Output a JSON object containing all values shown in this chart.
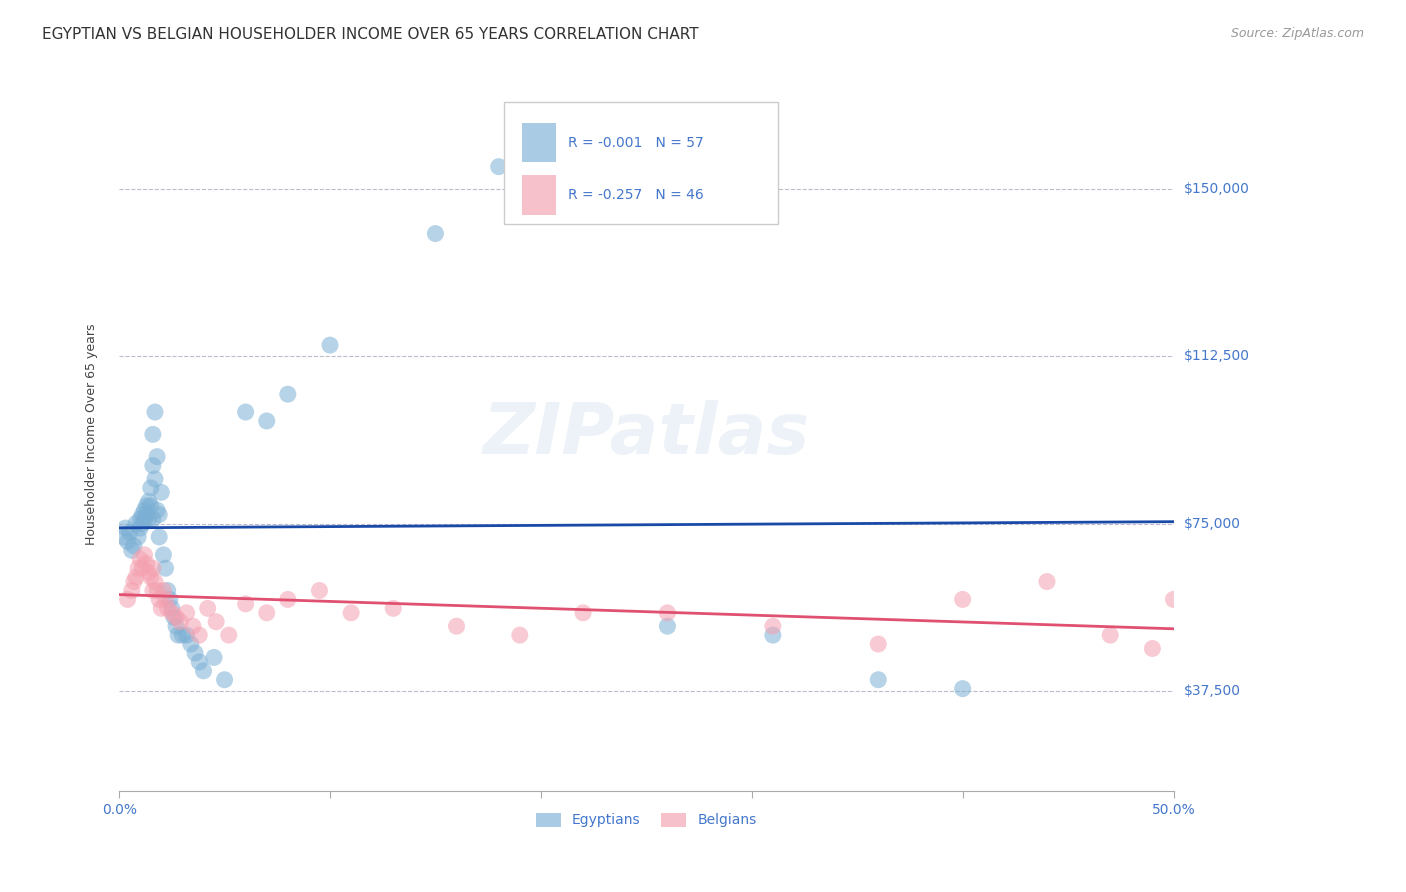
{
  "title": "EGYPTIAN VS BELGIAN HOUSEHOLDER INCOME OVER 65 YEARS CORRELATION CHART",
  "source": "Source: ZipAtlas.com",
  "ylabel": "Householder Income Over 65 years",
  "xlim": [
    0.0,
    0.5
  ],
  "ylim": [
    15000,
    175000
  ],
  "yticks": [
    37500,
    75000,
    112500,
    150000
  ],
  "ytick_labels": [
    "$37,500",
    "$75,000",
    "$112,500",
    "$150,000"
  ],
  "xticks": [
    0.0,
    0.1,
    0.2,
    0.3,
    0.4,
    0.5
  ],
  "xtick_labels": [
    "0.0%",
    "",
    "",
    "",
    "",
    "50.0%"
  ],
  "background_color": "#ffffff",
  "grid_color": "#bbbbcc",
  "blue_color": "#7bafd4",
  "pink_color": "#f4a0b0",
  "line_blue": "#1a4aa8",
  "line_pink": "#e05070",
  "label_color": "#4477cc",
  "tick_color": "#4477cc",
  "watermark_color": "#9bbbd4",
  "watermark": "ZIPatlas",
  "legend_r_blue": "R = -0.001",
  "legend_n_blue": "N = 57",
  "legend_r_pink": "R = -0.257",
  "legend_n_pink": "N = 46",
  "egyptians_x": [
    0.002,
    0.003,
    0.004,
    0.005,
    0.006,
    0.007,
    0.008,
    0.009,
    0.01,
    0.01,
    0.011,
    0.011,
    0.012,
    0.012,
    0.013,
    0.013,
    0.014,
    0.014,
    0.015,
    0.015,
    0.016,
    0.016,
    0.016,
    0.017,
    0.017,
    0.018,
    0.018,
    0.019,
    0.019,
    0.02,
    0.021,
    0.022,
    0.023,
    0.024,
    0.025,
    0.026,
    0.027,
    0.028,
    0.03,
    0.032,
    0.034,
    0.036,
    0.038,
    0.04,
    0.045,
    0.05,
    0.06,
    0.07,
    0.08,
    0.1,
    0.15,
    0.18,
    0.2,
    0.26,
    0.31,
    0.36,
    0.4
  ],
  "egyptians_y": [
    72000,
    74000,
    71000,
    73000,
    69000,
    70000,
    75000,
    72000,
    76000,
    74000,
    77000,
    75000,
    76000,
    78000,
    79000,
    77000,
    80000,
    76000,
    83000,
    79000,
    95000,
    88000,
    76000,
    100000,
    85000,
    90000,
    78000,
    77000,
    72000,
    82000,
    68000,
    65000,
    60000,
    58000,
    56000,
    54000,
    52000,
    50000,
    50000,
    50000,
    48000,
    46000,
    44000,
    42000,
    45000,
    40000,
    100000,
    98000,
    104000,
    115000,
    140000,
    155000,
    160000,
    52000,
    50000,
    40000,
    38000
  ],
  "belgians_x": [
    0.004,
    0.006,
    0.007,
    0.008,
    0.009,
    0.01,
    0.011,
    0.012,
    0.013,
    0.014,
    0.015,
    0.016,
    0.016,
    0.017,
    0.018,
    0.019,
    0.02,
    0.021,
    0.022,
    0.023,
    0.025,
    0.027,
    0.029,
    0.032,
    0.035,
    0.038,
    0.042,
    0.046,
    0.052,
    0.06,
    0.07,
    0.08,
    0.095,
    0.11,
    0.13,
    0.16,
    0.19,
    0.22,
    0.26,
    0.31,
    0.36,
    0.4,
    0.44,
    0.47,
    0.49,
    0.5
  ],
  "belgians_y": [
    58000,
    60000,
    62000,
    63000,
    65000,
    67000,
    65000,
    68000,
    66000,
    64000,
    63000,
    65000,
    60000,
    62000,
    60000,
    58000,
    56000,
    60000,
    58000,
    56000,
    55000,
    54000,
    53000,
    55000,
    52000,
    50000,
    56000,
    53000,
    50000,
    57000,
    55000,
    58000,
    60000,
    55000,
    56000,
    52000,
    50000,
    55000,
    55000,
    52000,
    48000,
    58000,
    62000,
    50000,
    47000,
    58000
  ],
  "title_fontsize": 11,
  "source_fontsize": 9,
  "axis_label_fontsize": 9,
  "tick_label_fontsize": 10,
  "legend_fontsize": 10,
  "watermark_fontsize": 52,
  "watermark_alpha": 0.18
}
